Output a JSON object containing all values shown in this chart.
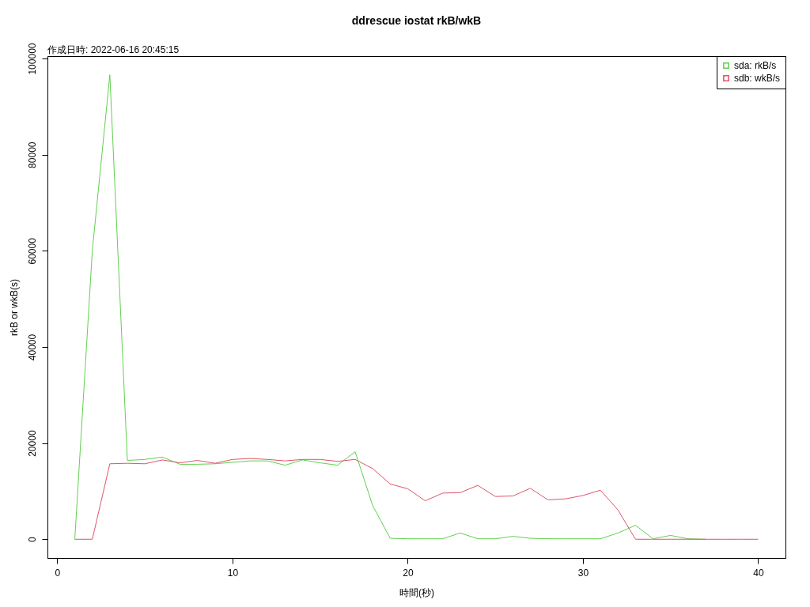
{
  "chart_data": {
    "type": "line",
    "title": "ddrescue iostat rkB/wkB",
    "subtitle": "作成日時: 2022-06-16 20:45:15",
    "xlabel": "時間(秒)",
    "ylabel": "rkB or wkB(s)",
    "x": [
      1,
      2,
      3,
      4,
      5,
      6,
      7,
      8,
      9,
      10,
      11,
      12,
      13,
      14,
      15,
      16,
      17,
      18,
      19,
      20,
      21,
      22,
      23,
      24,
      25,
      26,
      27,
      28,
      29,
      30,
      31,
      32,
      33,
      34,
      35,
      36,
      37,
      38,
      39,
      40
    ],
    "series": [
      {
        "name": "sda: rkB/s",
        "color": "#61d04f",
        "values": [
          0,
          60000,
          96600,
          16400,
          16600,
          17100,
          15600,
          15600,
          15700,
          16000,
          16300,
          16300,
          15400,
          16500,
          15900,
          15400,
          18200,
          7000,
          200,
          100,
          100,
          100,
          1300,
          100,
          100,
          600,
          200,
          100,
          100,
          100,
          100,
          1300,
          2900,
          100,
          800,
          100,
          0,
          null,
          null,
          null
        ]
      },
      {
        "name": "sdb: wkB/s",
        "color": "#df536b",
        "values": [
          0,
          0,
          15700,
          15800,
          15700,
          16500,
          15900,
          16400,
          15800,
          16600,
          16800,
          16600,
          16300,
          16600,
          16600,
          16200,
          16600,
          14700,
          11500,
          10500,
          8000,
          9600,
          9700,
          11200,
          8900,
          9000,
          10600,
          8200,
          8400,
          9100,
          10200,
          6100,
          0,
          0,
          0,
          0,
          0,
          0,
          0,
          0
        ]
      }
    ],
    "xlim": [
      -0.56,
      41.56
    ],
    "ylim": [
      -3900,
      100500
    ],
    "xticks": [
      0,
      10,
      20,
      30,
      40
    ],
    "yticks": [
      0,
      20000,
      40000,
      60000,
      80000,
      100000
    ],
    "grid": false,
    "legend": "top right",
    "marker": "none",
    "line_style": "solid"
  }
}
